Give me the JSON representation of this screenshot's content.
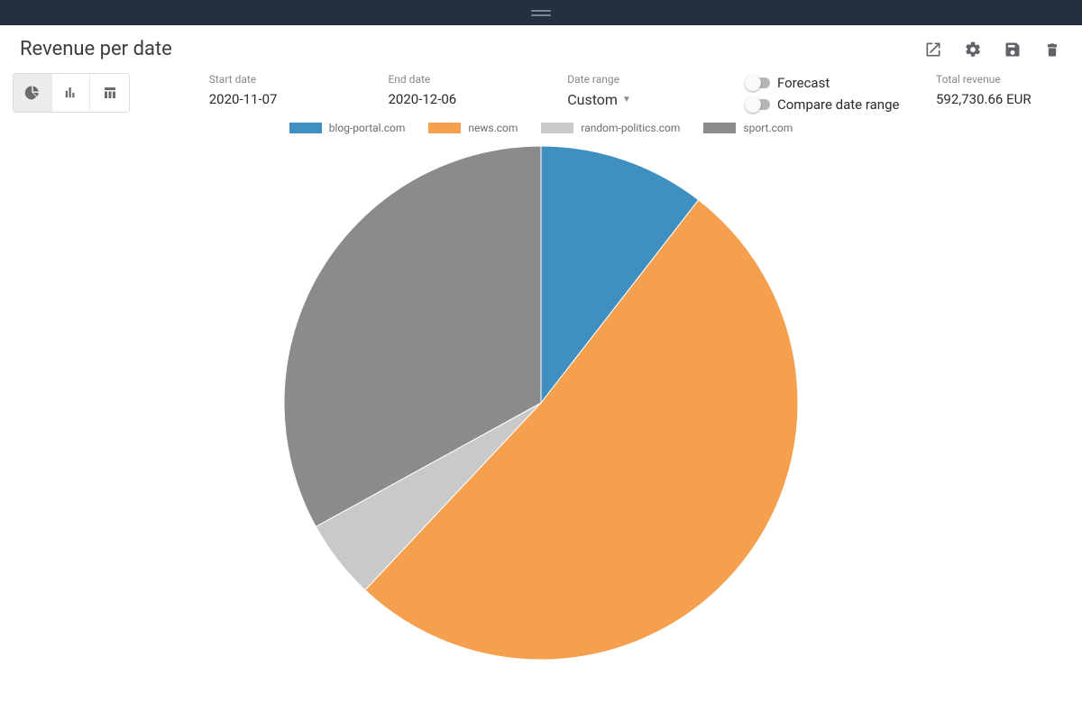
{
  "header": {
    "title": "Revenue per date"
  },
  "toolbar_icons": {
    "open": "open-external",
    "settings": "settings",
    "save": "save",
    "delete": "delete"
  },
  "chart_type_buttons": {
    "pie_active": true,
    "bar_active": false,
    "table_active": false
  },
  "filters": {
    "start_date_label": "Start date",
    "start_date_value": "2020-11-07",
    "end_date_label": "End date",
    "end_date_value": "2020-12-06",
    "date_range_label": "Date range",
    "date_range_value": "Custom"
  },
  "toggles": {
    "forecast_label": "Forecast",
    "forecast_on": false,
    "compare_label": "Compare date range",
    "compare_on": false
  },
  "total": {
    "label": "Total revenue",
    "value": "592,730.66 EUR"
  },
  "chart": {
    "type": "pie",
    "radius": 285,
    "background_color": "#ffffff",
    "legend_fontsize": 12,
    "legend_color": "#6b6b6b",
    "legend_swatch_w": 36,
    "legend_swatch_h": 12,
    "series": [
      {
        "label": "blog-portal.com",
        "value": 10.5,
        "color": "#3f8fc0"
      },
      {
        "label": "news.com",
        "value": 51.5,
        "color": "#f5a04e"
      },
      {
        "label": "random-politics.com",
        "value": 5.0,
        "color": "#c9c9c9"
      },
      {
        "label": "sport.com",
        "value": 33.0,
        "color": "#8b8b8b"
      }
    ]
  }
}
